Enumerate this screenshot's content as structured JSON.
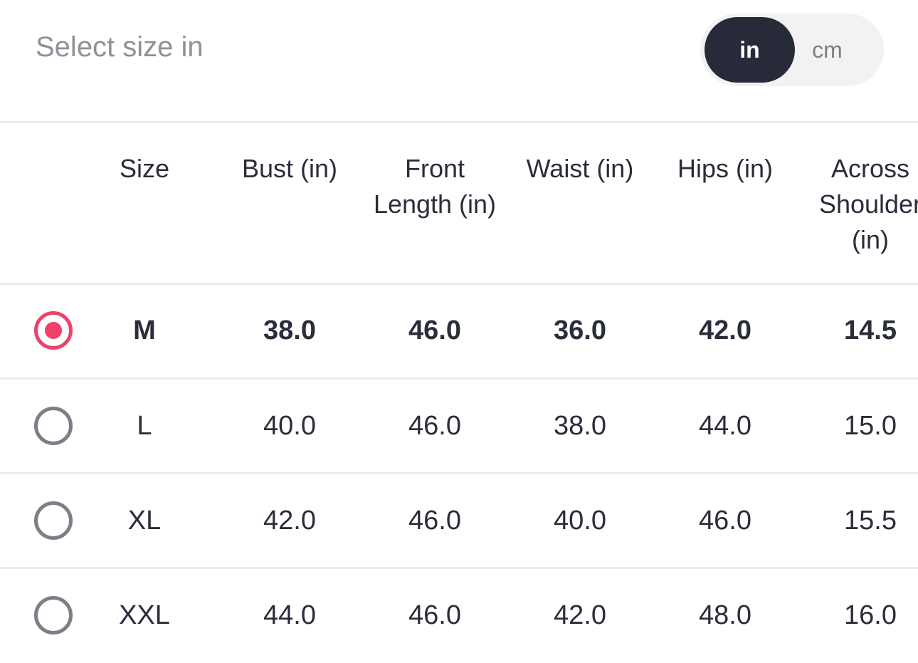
{
  "header": {
    "title": "Select size in",
    "units": [
      {
        "label": "in",
        "active": true
      },
      {
        "label": "cm",
        "active": false
      }
    ]
  },
  "colors": {
    "accent": "#f0416a",
    "toggle_active": "#272b39"
  },
  "table": {
    "columns": [
      "Size",
      "Bust (in)",
      "Front Length (in)",
      "Waist (in)",
      "Hips (in)",
      "Across Shoulder (in)"
    ],
    "rows": [
      {
        "selected": true,
        "cells": [
          "M",
          "38.0",
          "46.0",
          "36.0",
          "42.0",
          "14.5"
        ]
      },
      {
        "selected": false,
        "cells": [
          "L",
          "40.0",
          "46.0",
          "38.0",
          "44.0",
          "15.0"
        ]
      },
      {
        "selected": false,
        "cells": [
          "XL",
          "42.0",
          "46.0",
          "40.0",
          "46.0",
          "15.5"
        ]
      },
      {
        "selected": false,
        "cells": [
          "XXL",
          "44.0",
          "46.0",
          "42.0",
          "48.0",
          "16.0"
        ]
      }
    ]
  }
}
